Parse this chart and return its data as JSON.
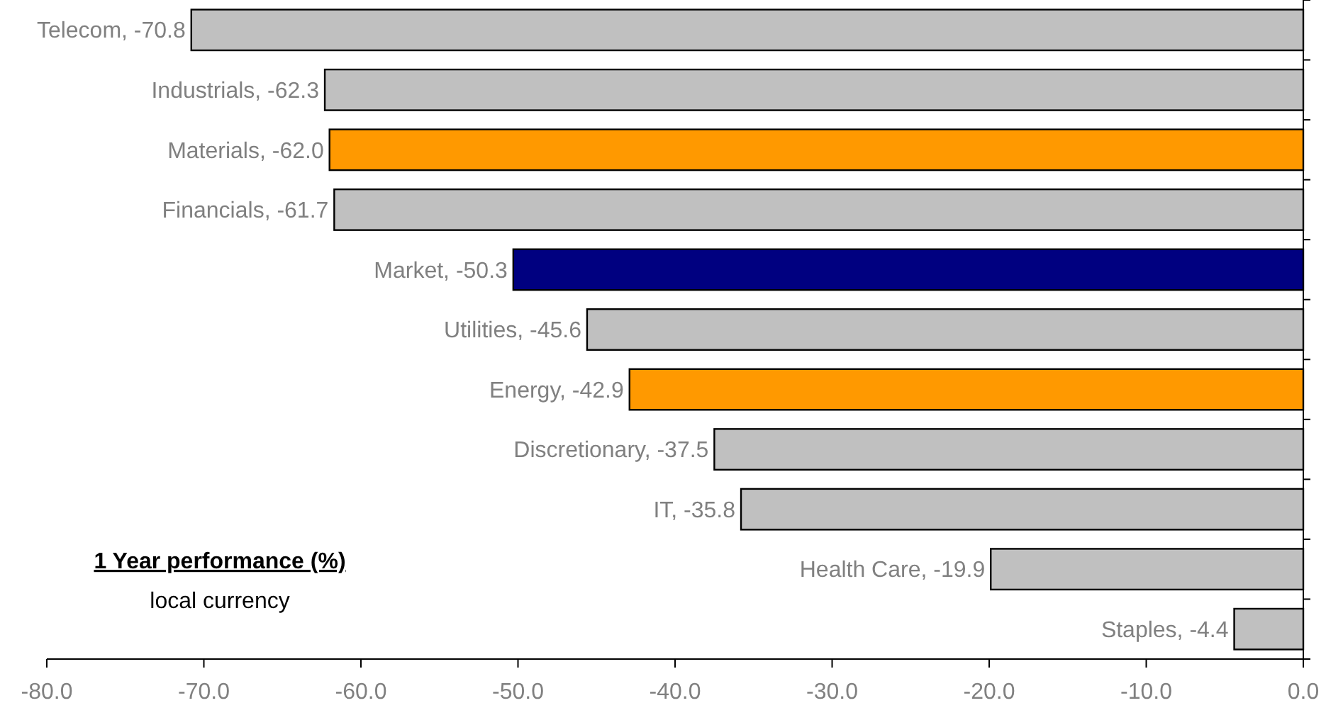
{
  "chart_data": {
    "type": "bar",
    "orientation": "horizontal",
    "title": "1 Year performance (%)",
    "subtitle": "local currency",
    "categories": [
      "Telecom, -70.8",
      "Industrials, -62.3",
      "Materials, -62.0",
      "Financials, -61.7",
      "Market, -50.3",
      "Utilities, -45.6",
      "Energy, -42.9",
      "Discretionary, -37.5",
      "IT, -35.8",
      "Health Care, -19.9",
      "Staples, -4.4"
    ],
    "values": [
      -70.8,
      -62.3,
      -62.0,
      -61.7,
      -50.3,
      -45.6,
      -42.9,
      -37.5,
      -35.8,
      -19.9,
      -4.4
    ],
    "colors": [
      "#c0c0c0",
      "#c0c0c0",
      "#ff9900",
      "#c0c0c0",
      "#000080",
      "#c0c0c0",
      "#ff9900",
      "#c0c0c0",
      "#c0c0c0",
      "#c0c0c0",
      "#c0c0c0"
    ],
    "xlim": [
      -80,
      0
    ],
    "xticks": [
      {
        "value": -80,
        "label": "-80.0"
      },
      {
        "value": -70,
        "label": "-70.0"
      },
      {
        "value": -60,
        "label": "-60.0"
      },
      {
        "value": -50,
        "label": "-50.0"
      },
      {
        "value": -40,
        "label": "-40.0"
      },
      {
        "value": -30,
        "label": "-30.0"
      },
      {
        "value": -20,
        "label": "-20.0"
      },
      {
        "value": -10,
        "label": "-10.0"
      },
      {
        "value": 0,
        "label": "0.0"
      }
    ],
    "grid": false
  }
}
